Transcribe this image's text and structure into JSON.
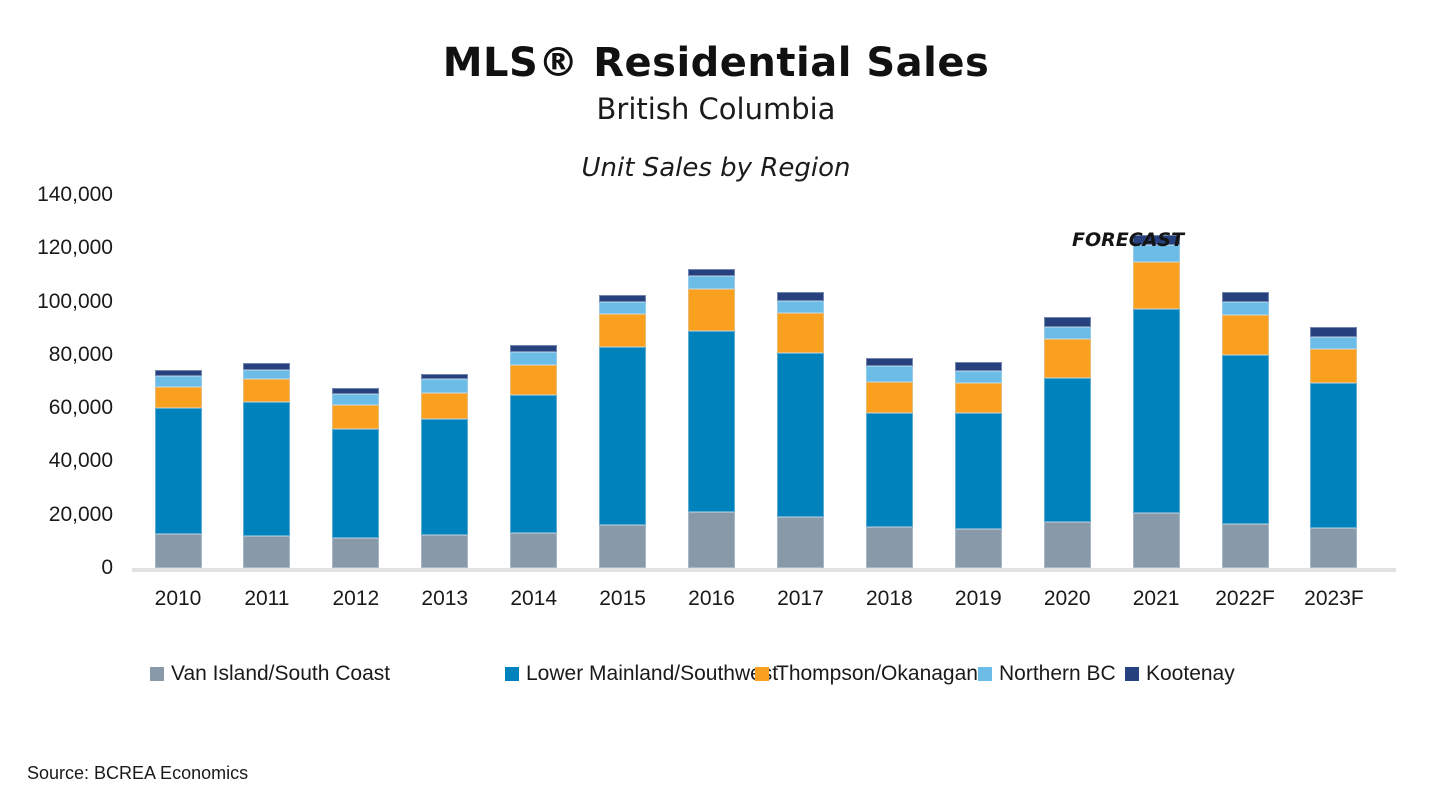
{
  "header": {
    "title": "MLS® Residential Sales",
    "subtitle": "British Columbia",
    "chart_title": "Unit Sales by Region"
  },
  "source": "Source: BCREA Economics",
  "chart_data": {
    "type": "bar",
    "stacked": true,
    "title": "Unit Sales by Region",
    "annotation": "FORECAST",
    "grid": false,
    "legend_position": "bottom",
    "axis_line_color": "#E2E2E2",
    "ylim": [
      0,
      140000
    ],
    "ytick_step": 20000,
    "yticks": [
      {
        "value": 140000,
        "label": "140,000"
      },
      {
        "value": 120000,
        "label": "120,000"
      },
      {
        "value": 100000,
        "label": "100,000"
      },
      {
        "value": 80000,
        "label": "80,000"
      },
      {
        "value": 60000,
        "label": "60,000"
      },
      {
        "value": 40000,
        "label": "40,000"
      },
      {
        "value": 20000,
        "label": "20,000"
      },
      {
        "value": 0,
        "label": "0"
      }
    ],
    "categories": [
      "2010",
      "2011",
      "2012",
      "2013",
      "2014",
      "2015",
      "2016",
      "2017",
      "2018",
      "2019",
      "2020",
      "2021",
      "2022F",
      "2023F"
    ],
    "series": [
      {
        "name": "Van Island/South Coast",
        "color": "#8899A9",
        "values": [
          12600,
          12000,
          11250,
          12400,
          13100,
          16100,
          20900,
          19100,
          15400,
          14500,
          17300,
          20750,
          16600,
          15100
        ]
      },
      {
        "name": "Lower Mainland/Southwest",
        "color": "#0082BC",
        "values": [
          47500,
          50300,
          40750,
          43500,
          51800,
          66700,
          68200,
          61700,
          42900,
          43800,
          54000,
          76550,
          63500,
          54400
        ]
      },
      {
        "name": "Thompson/Okanagan",
        "color": "#F9A11E",
        "values": [
          7900,
          8500,
          9300,
          10000,
          11250,
          12500,
          15600,
          14900,
          11700,
          11200,
          14700,
          17700,
          14700,
          12800
        ]
      },
      {
        "name": "Northern BC",
        "color": "#6BBDE8",
        "values": [
          4200,
          3700,
          4000,
          5000,
          5000,
          4600,
          5000,
          4700,
          5800,
          4600,
          4400,
          6300,
          5200,
          4600
        ]
      },
      {
        "name": "Kootenay",
        "color": "#26417E",
        "values": [
          2300,
          2400,
          2200,
          1900,
          2600,
          2500,
          2700,
          3300,
          3000,
          3200,
          3800,
          3700,
          3500,
          3500
        ]
      }
    ]
  }
}
